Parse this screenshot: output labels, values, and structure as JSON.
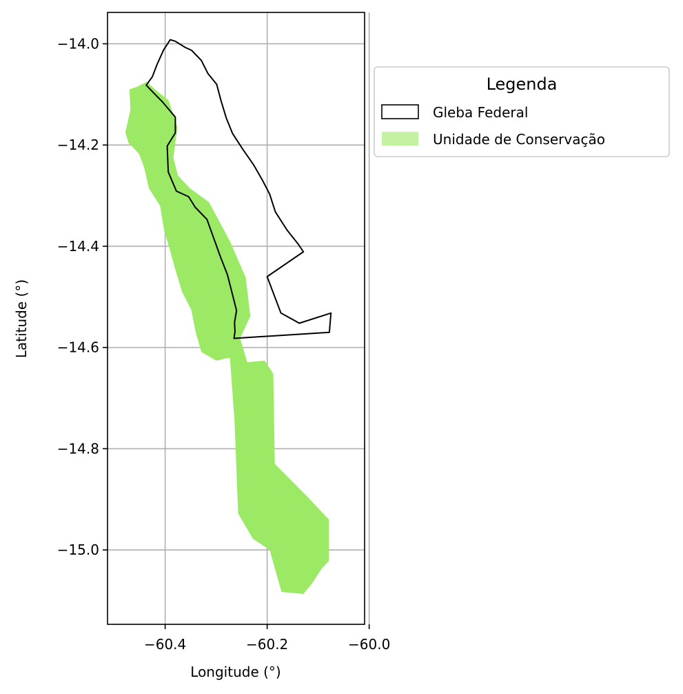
{
  "map": {
    "xlabel": "Longitude (°)",
    "ylabel": "Latitude (°)",
    "xlim": [
      -60.513,
      -60.009
    ],
    "ylim": [
      -15.147,
      -13.938
    ],
    "grid": true,
    "x_ticks": [
      {
        "value": -60.4,
        "label": "−60.4"
      },
      {
        "value": -60.2,
        "label": "−60.2"
      },
      {
        "value": -60.0,
        "label": "−60.0"
      }
    ],
    "y_ticks": [
      {
        "value": -14.0,
        "label": "−14.0"
      },
      {
        "value": -14.2,
        "label": "−14.2"
      },
      {
        "value": -14.4,
        "label": "−14.4"
      },
      {
        "value": -14.6,
        "label": "−14.6"
      },
      {
        "value": -14.8,
        "label": "−14.8"
      },
      {
        "value": -15.0,
        "label": "−15.0"
      }
    ],
    "legend": {
      "title": "Legenda",
      "placement": "outside-right-top",
      "entries": [
        {
          "label": "Gleba Federal",
          "style": "outline",
          "color": "#000000"
        },
        {
          "label": "Unidade de Conservação",
          "style": "fill",
          "color": "#9be964"
        }
      ]
    },
    "layers": {
      "unidade_conservacao": {
        "name": "Unidade de Conservação",
        "color": "#9be964",
        "polygon": [
          [
            -60.436,
            -14.075
          ],
          [
            -60.42,
            -14.09
          ],
          [
            -60.393,
            -14.112
          ],
          [
            -60.376,
            -14.165
          ],
          [
            -60.384,
            -14.225
          ],
          [
            -60.375,
            -14.26
          ],
          [
            -60.352,
            -14.285
          ],
          [
            -60.314,
            -14.313
          ],
          [
            -60.273,
            -14.39
          ],
          [
            -60.242,
            -14.462
          ],
          [
            -60.233,
            -14.538
          ],
          [
            -60.253,
            -14.582
          ],
          [
            -60.239,
            -14.629
          ],
          [
            -60.205,
            -14.626
          ],
          [
            -60.188,
            -14.652
          ],
          [
            -60.185,
            -14.83
          ],
          [
            -60.121,
            -14.895
          ],
          [
            -60.079,
            -14.94
          ],
          [
            -60.079,
            -15.022
          ],
          [
            -60.093,
            -15.037
          ],
          [
            -60.111,
            -15.065
          ],
          [
            -60.129,
            -15.087
          ],
          [
            -60.172,
            -15.083
          ],
          [
            -60.195,
            -15.0
          ],
          [
            -60.228,
            -14.978
          ],
          [
            -60.257,
            -14.928
          ],
          [
            -60.264,
            -14.745
          ],
          [
            -60.273,
            -14.62
          ],
          [
            -60.3,
            -14.626
          ],
          [
            -60.329,
            -14.609
          ],
          [
            -60.34,
            -14.57
          ],
          [
            -60.349,
            -14.525
          ],
          [
            -60.367,
            -14.49
          ],
          [
            -60.379,
            -14.45
          ],
          [
            -60.39,
            -14.41
          ],
          [
            -60.402,
            -14.368
          ],
          [
            -60.41,
            -14.32
          ],
          [
            -60.432,
            -14.285
          ],
          [
            -60.441,
            -14.245
          ],
          [
            -60.451,
            -14.218
          ],
          [
            -60.472,
            -14.195
          ],
          [
            -60.478,
            -14.175
          ],
          [
            -60.468,
            -14.13
          ],
          [
            -60.47,
            -14.09
          ],
          [
            -60.455,
            -14.085
          ]
        ]
      },
      "gleba_federal": {
        "name": "Gleba Federal",
        "color": "#000000",
        "polygon": [
          [
            -60.39,
            -13.992
          ],
          [
            -60.38,
            -13.995
          ],
          [
            -60.361,
            -14.007
          ],
          [
            -60.348,
            -14.013
          ],
          [
            -60.329,
            -14.033
          ],
          [
            -60.316,
            -14.059
          ],
          [
            -60.299,
            -14.08
          ],
          [
            -60.29,
            -14.114
          ],
          [
            -60.28,
            -14.147
          ],
          [
            -60.268,
            -14.177
          ],
          [
            -60.248,
            -14.208
          ],
          [
            -60.226,
            -14.24
          ],
          [
            -60.209,
            -14.27
          ],
          [
            -60.195,
            -14.297
          ],
          [
            -60.184,
            -14.332
          ],
          [
            -60.161,
            -14.368
          ],
          [
            -60.139,
            -14.396
          ],
          [
            -60.129,
            -14.411
          ],
          [
            -60.2,
            -14.46
          ],
          [
            -60.173,
            -14.532
          ],
          [
            -60.137,
            -14.552
          ],
          [
            -60.075,
            -14.532
          ],
          [
            -60.078,
            -14.57
          ],
          [
            -60.265,
            -14.582
          ],
          [
            -60.263,
            -14.568
          ],
          [
            -60.264,
            -14.551
          ],
          [
            -60.26,
            -14.527
          ],
          [
            -60.268,
            -14.495
          ],
          [
            -60.278,
            -14.456
          ],
          [
            -60.292,
            -14.42
          ],
          [
            -60.307,
            -14.378
          ],
          [
            -60.318,
            -14.347
          ],
          [
            -60.341,
            -14.323
          ],
          [
            -60.354,
            -14.302
          ],
          [
            -60.378,
            -14.291
          ],
          [
            -60.394,
            -14.253
          ],
          [
            -60.396,
            -14.202
          ],
          [
            -60.38,
            -14.176
          ],
          [
            -60.38,
            -14.145
          ],
          [
            -60.405,
            -14.115
          ],
          [
            -60.437,
            -14.082
          ],
          [
            -60.425,
            -14.065
          ],
          [
            -60.416,
            -14.041
          ],
          [
            -60.403,
            -14.012
          ]
        ]
      }
    }
  }
}
